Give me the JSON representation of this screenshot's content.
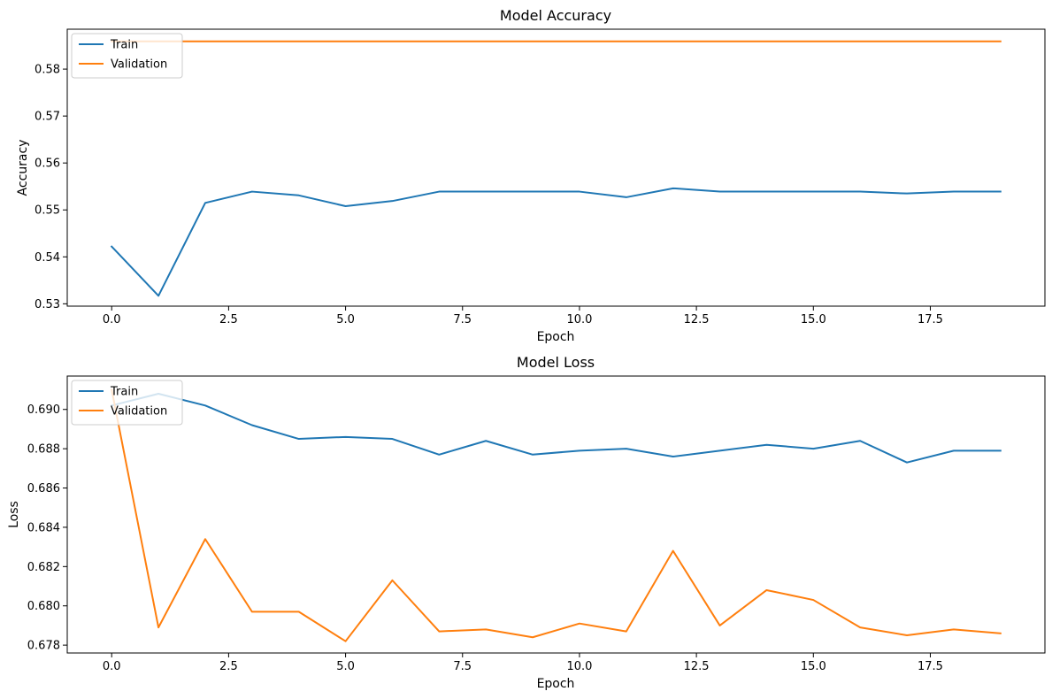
{
  "chart_data": [
    {
      "type": "line",
      "title": "Model Accuracy",
      "xlabel": "Epoch",
      "ylabel": "Accuracy",
      "xlim": [
        -0.95,
        19.95
      ],
      "ylim": [
        0.5295,
        0.5885
      ],
      "x_ticks": [
        0.0,
        2.5,
        5.0,
        7.5,
        10.0,
        12.5,
        15.0,
        17.5
      ],
      "x_tick_labels": [
        "0.0",
        "2.5",
        "5.0",
        "7.5",
        "10.0",
        "12.5",
        "15.0",
        "17.5"
      ],
      "y_ticks": [
        0.53,
        0.54,
        0.55,
        0.56,
        0.57,
        0.58
      ],
      "y_tick_labels": [
        "0.53",
        "0.54",
        "0.55",
        "0.56",
        "0.57",
        "0.58"
      ],
      "grid": false,
      "legend_position": "upper left",
      "x": [
        0,
        1,
        2,
        3,
        4,
        5,
        6,
        7,
        8,
        9,
        10,
        11,
        12,
        13,
        14,
        15,
        16,
        17,
        18,
        19
      ],
      "series": [
        {
          "name": "Train",
          "color": "#1f77b4",
          "values": [
            0.5422,
            0.5317,
            0.5515,
            0.5539,
            0.5531,
            0.5508,
            0.5519,
            0.5539,
            0.5539,
            0.5539,
            0.5539,
            0.5527,
            0.5546,
            0.5539,
            0.5539,
            0.5539,
            0.5539,
            0.5535,
            0.5539,
            0.5539
          ]
        },
        {
          "name": "Validation",
          "color": "#ff7f0e",
          "values": [
            0.5859,
            0.5859,
            0.5859,
            0.5859,
            0.5859,
            0.5859,
            0.5859,
            0.5859,
            0.5859,
            0.5859,
            0.5859,
            0.5859,
            0.5859,
            0.5859,
            0.5859,
            0.5859,
            0.5859,
            0.5859,
            0.5859,
            0.5859
          ]
        }
      ]
    },
    {
      "type": "line",
      "title": "Model Loss",
      "xlabel": "Epoch",
      "ylabel": "Loss",
      "xlim": [
        -0.95,
        19.95
      ],
      "ylim": [
        0.6776,
        0.6917
      ],
      "x_ticks": [
        0.0,
        2.5,
        5.0,
        7.5,
        10.0,
        12.5,
        15.0,
        17.5
      ],
      "x_tick_labels": [
        "0.0",
        "2.5",
        "5.0",
        "7.5",
        "10.0",
        "12.5",
        "15.0",
        "17.5"
      ],
      "y_ticks": [
        0.678,
        0.68,
        0.682,
        0.684,
        0.686,
        0.688,
        0.69
      ],
      "y_tick_labels": [
        "0.678",
        "0.680",
        "0.682",
        "0.684",
        "0.686",
        "0.688",
        "0.690"
      ],
      "grid": false,
      "legend_position": "upper left",
      "x": [
        0,
        1,
        2,
        3,
        4,
        5,
        6,
        7,
        8,
        9,
        10,
        11,
        12,
        13,
        14,
        15,
        16,
        17,
        18,
        19
      ],
      "series": [
        {
          "name": "Train",
          "color": "#1f77b4",
          "values": [
            0.6902,
            0.6908,
            0.6902,
            0.6892,
            0.6885,
            0.6886,
            0.6885,
            0.6877,
            0.6884,
            0.6877,
            0.6879,
            0.688,
            0.6876,
            0.6879,
            0.6882,
            0.688,
            0.6884,
            0.6873,
            0.6879,
            0.6879
          ]
        },
        {
          "name": "Validation",
          "color": "#ff7f0e",
          "values": [
            0.691,
            0.6789,
            0.6834,
            0.6797,
            0.6797,
            0.6782,
            0.6813,
            0.6787,
            0.6788,
            0.6784,
            0.6791,
            0.6787,
            0.6828,
            0.679,
            0.6808,
            0.6803,
            0.6789,
            0.6785,
            0.6788,
            0.6786
          ]
        }
      ]
    }
  ]
}
